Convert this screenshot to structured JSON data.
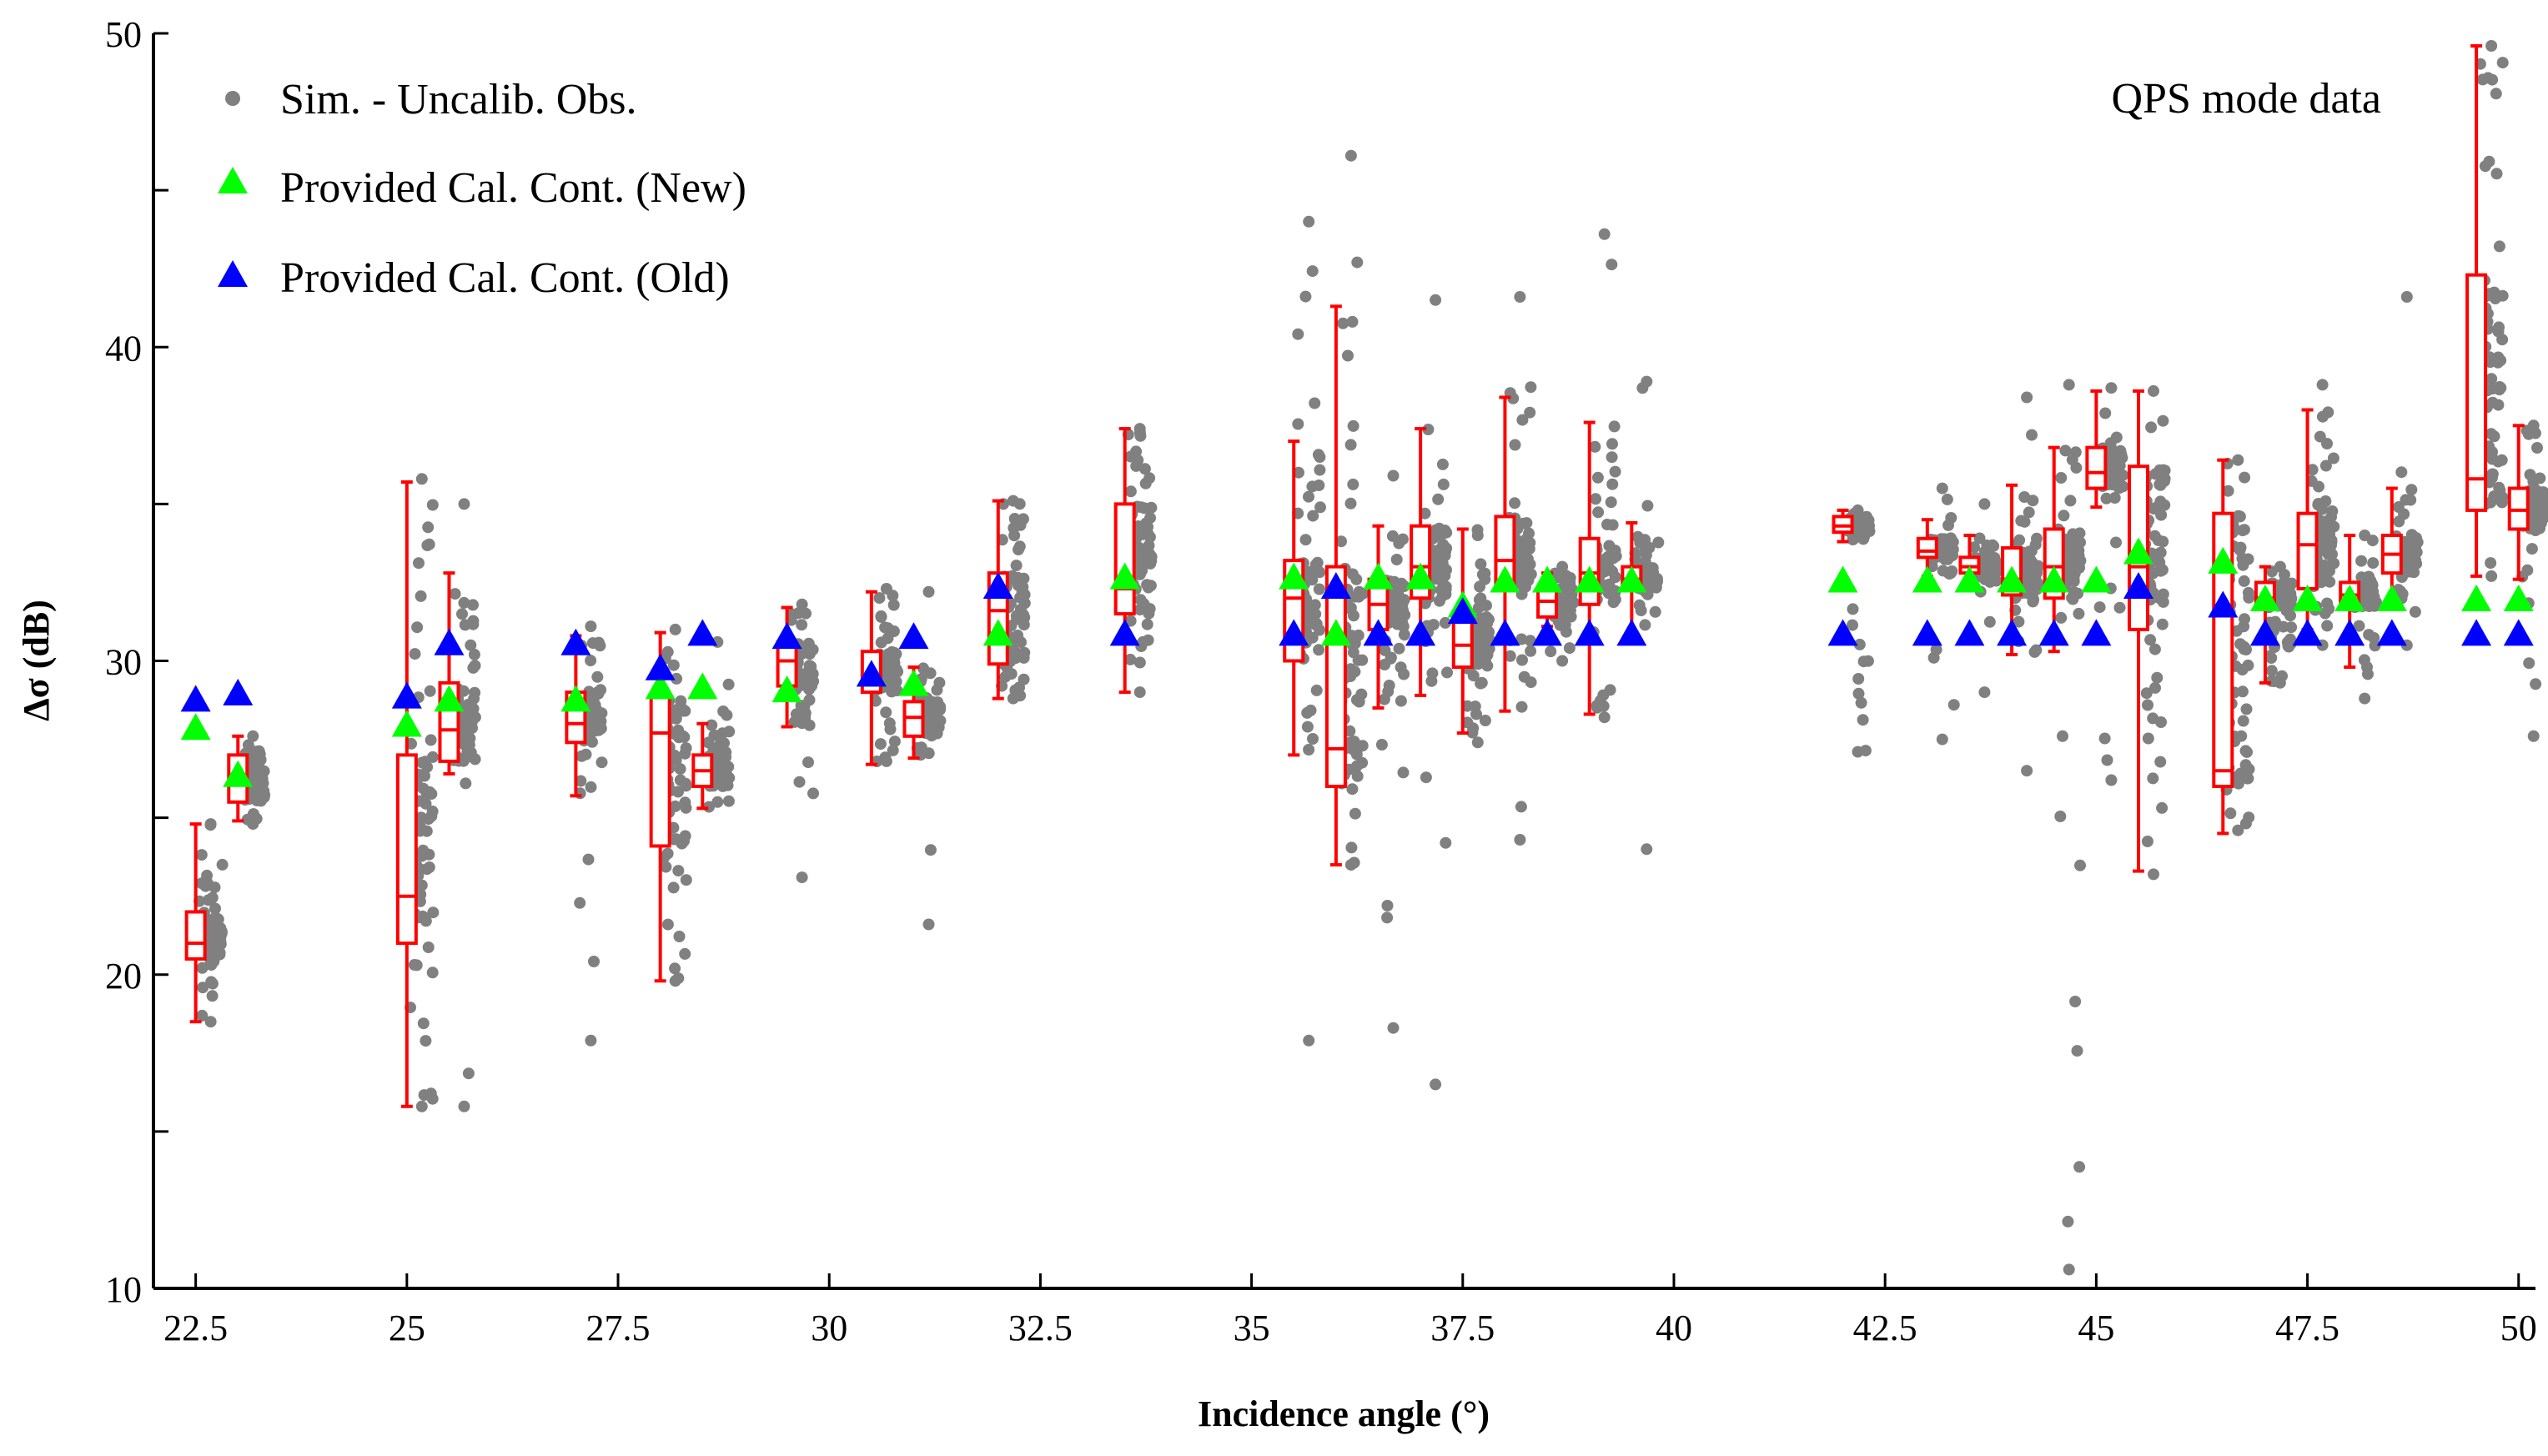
{
  "chart_data": {
    "type": "scatter",
    "xlabel": "Incidence angle (°)",
    "ylabel": "Δσ (dB)",
    "xlim": [
      22,
      50.2
    ],
    "ylim": [
      10,
      50
    ],
    "xticks": [
      22.5,
      25,
      27.5,
      30,
      32.5,
      35,
      37.5,
      40,
      42.5,
      45,
      47.5,
      50
    ],
    "xtick_labels": [
      "22.5",
      "25",
      "27.5",
      "30",
      "32.5",
      "35",
      "37.5",
      "40",
      "42.5",
      "45",
      "47.5",
      "50"
    ],
    "yticks": [
      10,
      20,
      30,
      40,
      50
    ],
    "ytick_labels": [
      "10",
      "20",
      "30",
      "40",
      "50"
    ],
    "annotation": "QPS mode data",
    "legend": {
      "position": "top-left",
      "entries": [
        {
          "label": "Sim. - Uncalib. Obs.",
          "marker": "circle",
          "color": "#808080"
        },
        {
          "label": "Provided Cal. Cont. (New)",
          "marker": "triangle",
          "color": "#00ff00"
        },
        {
          "label": "Provided Cal. Cont. (Old)",
          "marker": "triangle",
          "color": "#0000ff"
        }
      ]
    },
    "scatter_clusters": [
      {
        "x": 22.5,
        "ymin": 18.5,
        "ymax": 24.8
      },
      {
        "x": 23.0,
        "ymin": 24.8,
        "ymax": 27.6
      },
      {
        "x": 25.0,
        "ymin": 15.8,
        "ymax": 35.8
      },
      {
        "x": 25.5,
        "ymin": 15.8,
        "ymax": 35.0
      },
      {
        "x": 27.0,
        "ymin": 17.9,
        "ymax": 31.1
      },
      {
        "x": 28.0,
        "ymin": 19.8,
        "ymax": 31.0
      },
      {
        "x": 28.5,
        "ymin": 25.5,
        "ymax": 30.6
      },
      {
        "x": 29.5,
        "ymin": 23.1,
        "ymax": 31.8
      },
      {
        "x": 30.5,
        "ymin": 26.8,
        "ymax": 32.3
      },
      {
        "x": 31.0,
        "ymin": 21.6,
        "ymax": 32.2
      },
      {
        "x": 32.0,
        "ymin": 28.8,
        "ymax": 35.1
      },
      {
        "x": 33.5,
        "ymin": 29.0,
        "ymax": 37.4
      },
      {
        "x": 35.5,
        "ymin": 17.9,
        "ymax": 44.0
      },
      {
        "x": 36.0,
        "ymin": 23.5,
        "ymax": 46.1
      },
      {
        "x": 36.5,
        "ymin": 18.3,
        "ymax": 35.9
      },
      {
        "x": 37.0,
        "ymin": 16.5,
        "ymax": 41.5
      },
      {
        "x": 37.5,
        "ymin": 27.4,
        "ymax": 34.0
      },
      {
        "x": 38.0,
        "ymin": 24.3,
        "ymax": 41.6
      },
      {
        "x": 38.5,
        "ymin": 30.0,
        "ymax": 33.0
      },
      {
        "x": 39.0,
        "ymin": 28.2,
        "ymax": 43.6
      },
      {
        "x": 39.5,
        "ymin": 24.0,
        "ymax": 38.9
      },
      {
        "x": 42.0,
        "ymin": 27.1,
        "ymax": 34.8
      },
      {
        "x": 43.0,
        "ymin": 27.5,
        "ymax": 35.5
      },
      {
        "x": 43.5,
        "ymin": 29.0,
        "ymax": 35.0
      },
      {
        "x": 44.0,
        "ymin": 26.5,
        "ymax": 38.4
      },
      {
        "x": 44.5,
        "ymin": 10.6,
        "ymax": 38.8
      },
      {
        "x": 45.0,
        "ymin": 26.2,
        "ymax": 38.7
      },
      {
        "x": 45.5,
        "ymin": 23.2,
        "ymax": 38.6
      },
      {
        "x": 46.5,
        "ymin": 24.6,
        "ymax": 36.4
      },
      {
        "x": 47.0,
        "ymin": 29.3,
        "ymax": 33.0
      },
      {
        "x": 47.5,
        "ymin": 30.5,
        "ymax": 38.8
      },
      {
        "x": 48.0,
        "ymin": 28.8,
        "ymax": 34.0
      },
      {
        "x": 48.5,
        "ymin": 30.5,
        "ymax": 41.6
      },
      {
        "x": 49.5,
        "ymin": 32.7,
        "ymax": 49.6
      },
      {
        "x": 50.0,
        "ymin": 27.6,
        "ymax": 37.5
      }
    ],
    "boxplots": [
      {
        "x": 22.5,
        "whisker_low": 18.5,
        "q1": 20.5,
        "median": 21.0,
        "q3": 22.0,
        "whisker_high": 24.8
      },
      {
        "x": 23.0,
        "whisker_low": 24.9,
        "q1": 25.5,
        "median": 26.3,
        "q3": 27.0,
        "whisker_high": 27.6
      },
      {
        "x": 25.0,
        "whisker_low": 15.8,
        "q1": 21.0,
        "median": 22.5,
        "q3": 27.0,
        "whisker_high": 35.7
      },
      {
        "x": 25.5,
        "whisker_low": 26.4,
        "q1": 26.8,
        "median": 27.8,
        "q3": 29.3,
        "whisker_high": 32.8
      },
      {
        "x": 27.0,
        "whisker_low": 25.7,
        "q1": 27.4,
        "median": 28.0,
        "q3": 29.0,
        "whisker_high": 30.8
      },
      {
        "x": 28.0,
        "whisker_low": 19.8,
        "q1": 24.1,
        "median": 27.7,
        "q3": 28.9,
        "whisker_high": 30.9
      },
      {
        "x": 28.5,
        "whisker_low": 25.3,
        "q1": 26.0,
        "median": 26.5,
        "q3": 27.0,
        "whisker_high": 28.0
      },
      {
        "x": 29.5,
        "whisker_low": 27.9,
        "q1": 29.2,
        "median": 30.0,
        "q3": 30.6,
        "whisker_high": 31.7
      },
      {
        "x": 30.5,
        "whisker_low": 26.7,
        "q1": 29.0,
        "median": 29.3,
        "q3": 30.3,
        "whisker_high": 32.2
      },
      {
        "x": 31.0,
        "whisker_low": 26.9,
        "q1": 27.6,
        "median": 28.2,
        "q3": 28.7,
        "whisker_high": 29.8
      },
      {
        "x": 32.0,
        "whisker_low": 28.8,
        "q1": 29.9,
        "median": 31.6,
        "q3": 32.8,
        "whisker_high": 35.1
      },
      {
        "x": 33.5,
        "whisker_low": 29.0,
        "q1": 31.5,
        "median": 32.3,
        "q3": 35.0,
        "whisker_high": 37.4
      },
      {
        "x": 35.5,
        "whisker_low": 27.0,
        "q1": 30.0,
        "median": 32.0,
        "q3": 33.2,
        "whisker_high": 37.0
      },
      {
        "x": 36.0,
        "whisker_low": 23.5,
        "q1": 26.0,
        "median": 27.2,
        "q3": 33.0,
        "whisker_high": 41.3
      },
      {
        "x": 36.5,
        "whisker_low": 28.5,
        "q1": 31.0,
        "median": 31.8,
        "q3": 32.6,
        "whisker_high": 34.3
      },
      {
        "x": 37.0,
        "whisker_low": 28.9,
        "q1": 32.0,
        "median": 33.0,
        "q3": 34.3,
        "whisker_high": 37.4
      },
      {
        "x": 37.5,
        "whisker_low": 27.7,
        "q1": 29.8,
        "median": 30.5,
        "q3": 31.4,
        "whisker_high": 34.2
      },
      {
        "x": 38.0,
        "whisker_low": 28.4,
        "q1": 32.4,
        "median": 33.2,
        "q3": 34.6,
        "whisker_high": 38.4
      },
      {
        "x": 38.5,
        "whisker_low": 31.1,
        "q1": 31.4,
        "median": 31.9,
        "q3": 32.3,
        "whisker_high": 32.8
      },
      {
        "x": 39.0,
        "whisker_low": 28.3,
        "q1": 31.8,
        "median": 32.8,
        "q3": 33.9,
        "whisker_high": 37.6
      },
      {
        "x": 39.5,
        "whisker_low": 30.9,
        "q1": 32.3,
        "median": 32.6,
        "q3": 33.0,
        "whisker_high": 34.4
      },
      {
        "x": 42.0,
        "whisker_low": 33.8,
        "q1": 34.1,
        "median": 34.3,
        "q3": 34.6,
        "whisker_high": 34.8
      },
      {
        "x": 43.0,
        "whisker_low": 32.7,
        "q1": 33.3,
        "median": 33.5,
        "q3": 33.9,
        "whisker_high": 34.5
      },
      {
        "x": 43.5,
        "whisker_low": 32.5,
        "q1": 32.8,
        "median": 33.0,
        "q3": 33.3,
        "whisker_high": 34.0
      },
      {
        "x": 44.0,
        "whisker_low": 30.2,
        "q1": 32.1,
        "median": 32.6,
        "q3": 33.6,
        "whisker_high": 35.6
      },
      {
        "x": 44.5,
        "whisker_low": 30.3,
        "q1": 32.0,
        "median": 33.0,
        "q3": 34.2,
        "whisker_high": 36.8
      },
      {
        "x": 45.0,
        "whisker_low": 34.9,
        "q1": 35.5,
        "median": 36.0,
        "q3": 36.8,
        "whisker_high": 38.6
      },
      {
        "x": 45.5,
        "whisker_low": 23.3,
        "q1": 31.0,
        "median": 33.0,
        "q3": 36.2,
        "whisker_high": 38.6
      },
      {
        "x": 46.5,
        "whisker_low": 24.5,
        "q1": 26.0,
        "median": 26.5,
        "q3": 34.7,
        "whisker_high": 36.4
      },
      {
        "x": 47.0,
        "whisker_low": 29.3,
        "q1": 31.7,
        "median": 32.0,
        "q3": 32.5,
        "whisker_high": 33.0
      },
      {
        "x": 47.5,
        "whisker_low": 31.0,
        "q1": 32.3,
        "median": 33.7,
        "q3": 34.7,
        "whisker_high": 38.0
      },
      {
        "x": 48.0,
        "whisker_low": 29.8,
        "q1": 31.7,
        "median": 32.1,
        "q3": 32.5,
        "whisker_high": 34.0
      },
      {
        "x": 48.5,
        "whisker_low": 31.7,
        "q1": 32.8,
        "median": 33.4,
        "q3": 34.0,
        "whisker_high": 35.5
      },
      {
        "x": 49.5,
        "whisker_low": 32.7,
        "q1": 34.8,
        "median": 35.8,
        "q3": 42.3,
        "whisker_high": 49.6
      },
      {
        "x": 50.0,
        "whisker_low": 32.6,
        "q1": 34.2,
        "median": 34.8,
        "q3": 35.5,
        "whisker_high": 37.5
      }
    ],
    "series": [
      {
        "name": "Provided Cal. Cont. (New)",
        "color": "#00ff00",
        "x": [
          22.5,
          23.0,
          25.0,
          25.5,
          27.0,
          28.0,
          28.5,
          29.5,
          30.5,
          31.0,
          32.0,
          33.5,
          35.5,
          36.0,
          36.5,
          37.0,
          37.5,
          38.0,
          38.5,
          39.0,
          39.5,
          42.0,
          43.0,
          43.5,
          44.0,
          44.5,
          45.0,
          45.5,
          46.5,
          47.0,
          47.5,
          48.0,
          48.5,
          49.5,
          50.0
        ],
        "y": [
          27.8,
          26.3,
          27.9,
          28.7,
          28.7,
          29.1,
          29.1,
          29.0,
          29.5,
          29.2,
          30.8,
          32.6,
          32.6,
          30.8,
          32.6,
          32.6,
          31.7,
          32.5,
          32.5,
          32.5,
          32.5,
          32.5,
          32.5,
          32.5,
          32.5,
          32.5,
          32.5,
          33.4,
          33.1,
          31.9,
          31.9,
          31.9,
          31.9,
          31.9,
          31.9
        ]
      },
      {
        "name": "Provided Cal. Cont. (Old)",
        "color": "#0000ff",
        "x": [
          22.5,
          23.0,
          25.0,
          25.5,
          27.0,
          28.0,
          28.5,
          29.5,
          30.5,
          31.0,
          32.0,
          33.5,
          35.5,
          36.0,
          36.5,
          37.0,
          37.5,
          38.0,
          38.5,
          39.0,
          39.5,
          42.0,
          43.0,
          43.5,
          44.0,
          44.5,
          45.0,
          45.5,
          46.5,
          47.0,
          47.5,
          48.0,
          48.5,
          49.5,
          50.0
        ],
        "y": [
          28.7,
          28.9,
          28.8,
          30.5,
          30.5,
          29.7,
          30.8,
          30.7,
          29.5,
          30.7,
          32.3,
          30.8,
          30.8,
          32.3,
          30.8,
          30.8,
          31.5,
          30.8,
          30.8,
          30.8,
          30.8,
          30.8,
          30.8,
          30.8,
          30.8,
          30.8,
          30.8,
          32.3,
          31.7,
          30.8,
          30.8,
          30.8,
          30.8,
          30.8,
          30.8
        ]
      }
    ]
  }
}
